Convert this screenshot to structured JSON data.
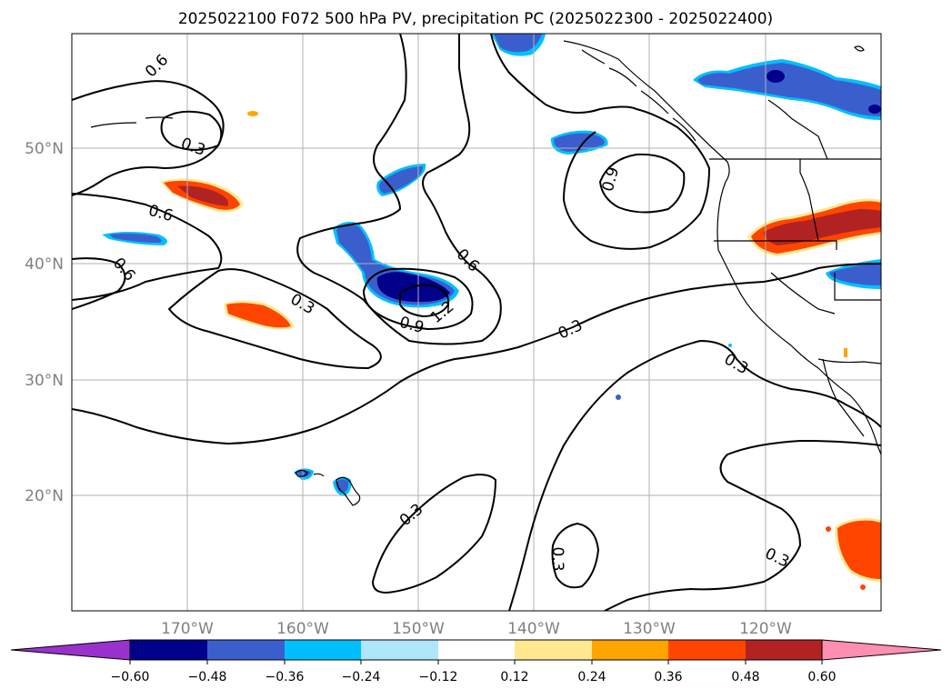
{
  "title": "2025022100 F072 500 hPa PV, precipitation PC (2025022300 - 2025022400)",
  "map": {
    "projection": "PlateCarree",
    "lon_range": [
      -180,
      -110
    ],
    "lat_range": [
      10,
      60
    ],
    "gridlines": true,
    "lat_labels": [
      "50°N",
      "40°N",
      "30°N",
      "20°N"
    ],
    "lon_labels": [
      "170°W",
      "160°W",
      "150°W",
      "140°W",
      "130°W",
      "120°W"
    ],
    "contour_color": "#000000",
    "contour_labels": [
      "0.6",
      "0.3",
      "0.6",
      "0.6",
      "0.3",
      "0.9",
      "1.2",
      "0.6",
      "0.9",
      "0.3",
      "0.3",
      "0.3",
      "0.3",
      "0.3"
    ]
  },
  "colorbar": {
    "tick_labels": [
      "−0.60",
      "−0.48",
      "−0.36",
      "−0.24",
      "−0.12",
      "0.12",
      "0.24",
      "0.36",
      "0.48",
      "0.60"
    ],
    "colors": [
      "#9932cc",
      "#00008b",
      "#3a5fcd",
      "#00bfff",
      "#aee6fb",
      "#ffffff",
      "#ffe88f",
      "#ffa500",
      "#ff4500",
      "#b22222",
      "#ff8fb0"
    ],
    "extend": "both"
  },
  "shading_colors": {
    "light_blue": "#aee6fb",
    "cyan": "#00bfff",
    "blue": "#3a5fcd",
    "navy": "#00008b",
    "yellow": "#ffe88f",
    "orange": "#ffa500",
    "red_orange": "#ff4500",
    "dark_red": "#b22222"
  }
}
